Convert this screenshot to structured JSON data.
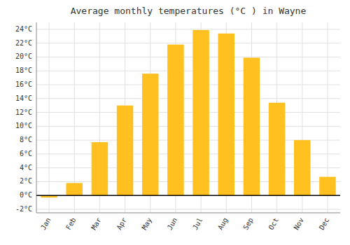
{
  "chart_data": {
    "type": "bar",
    "title": "Average monthly temperatures (°C ) in Wayne",
    "categories": [
      "Jan",
      "Feb",
      "Mar",
      "Apr",
      "May",
      "Jun",
      "Jul",
      "Aug",
      "Sep",
      "Oct",
      "Nov",
      "Dec"
    ],
    "values": [
      -0.3,
      1.8,
      7.7,
      13.0,
      17.6,
      21.8,
      23.9,
      23.4,
      19.9,
      13.4,
      8.0,
      2.7
    ],
    "color": "#FFC020",
    "ylim": [
      -2.5,
      25
    ],
    "yticks": [
      {
        "value": -2,
        "label": "-2°C"
      },
      {
        "value": 0,
        "label": "0°C"
      },
      {
        "value": 2,
        "label": "2°C"
      },
      {
        "value": 4,
        "label": "4°C"
      },
      {
        "value": 6,
        "label": "6°C"
      },
      {
        "value": 8,
        "label": "8°C"
      },
      {
        "value": 10,
        "label": "10°C"
      },
      {
        "value": 12,
        "label": "12°C"
      },
      {
        "value": 14,
        "label": "14°C"
      },
      {
        "value": 16,
        "label": "16°C"
      },
      {
        "value": 18,
        "label": "18°C"
      },
      {
        "value": 20,
        "label": "20°C"
      },
      {
        "value": 22,
        "label": "22°C"
      },
      {
        "value": 24,
        "label": "24°C"
      }
    ],
    "grid": true
  }
}
